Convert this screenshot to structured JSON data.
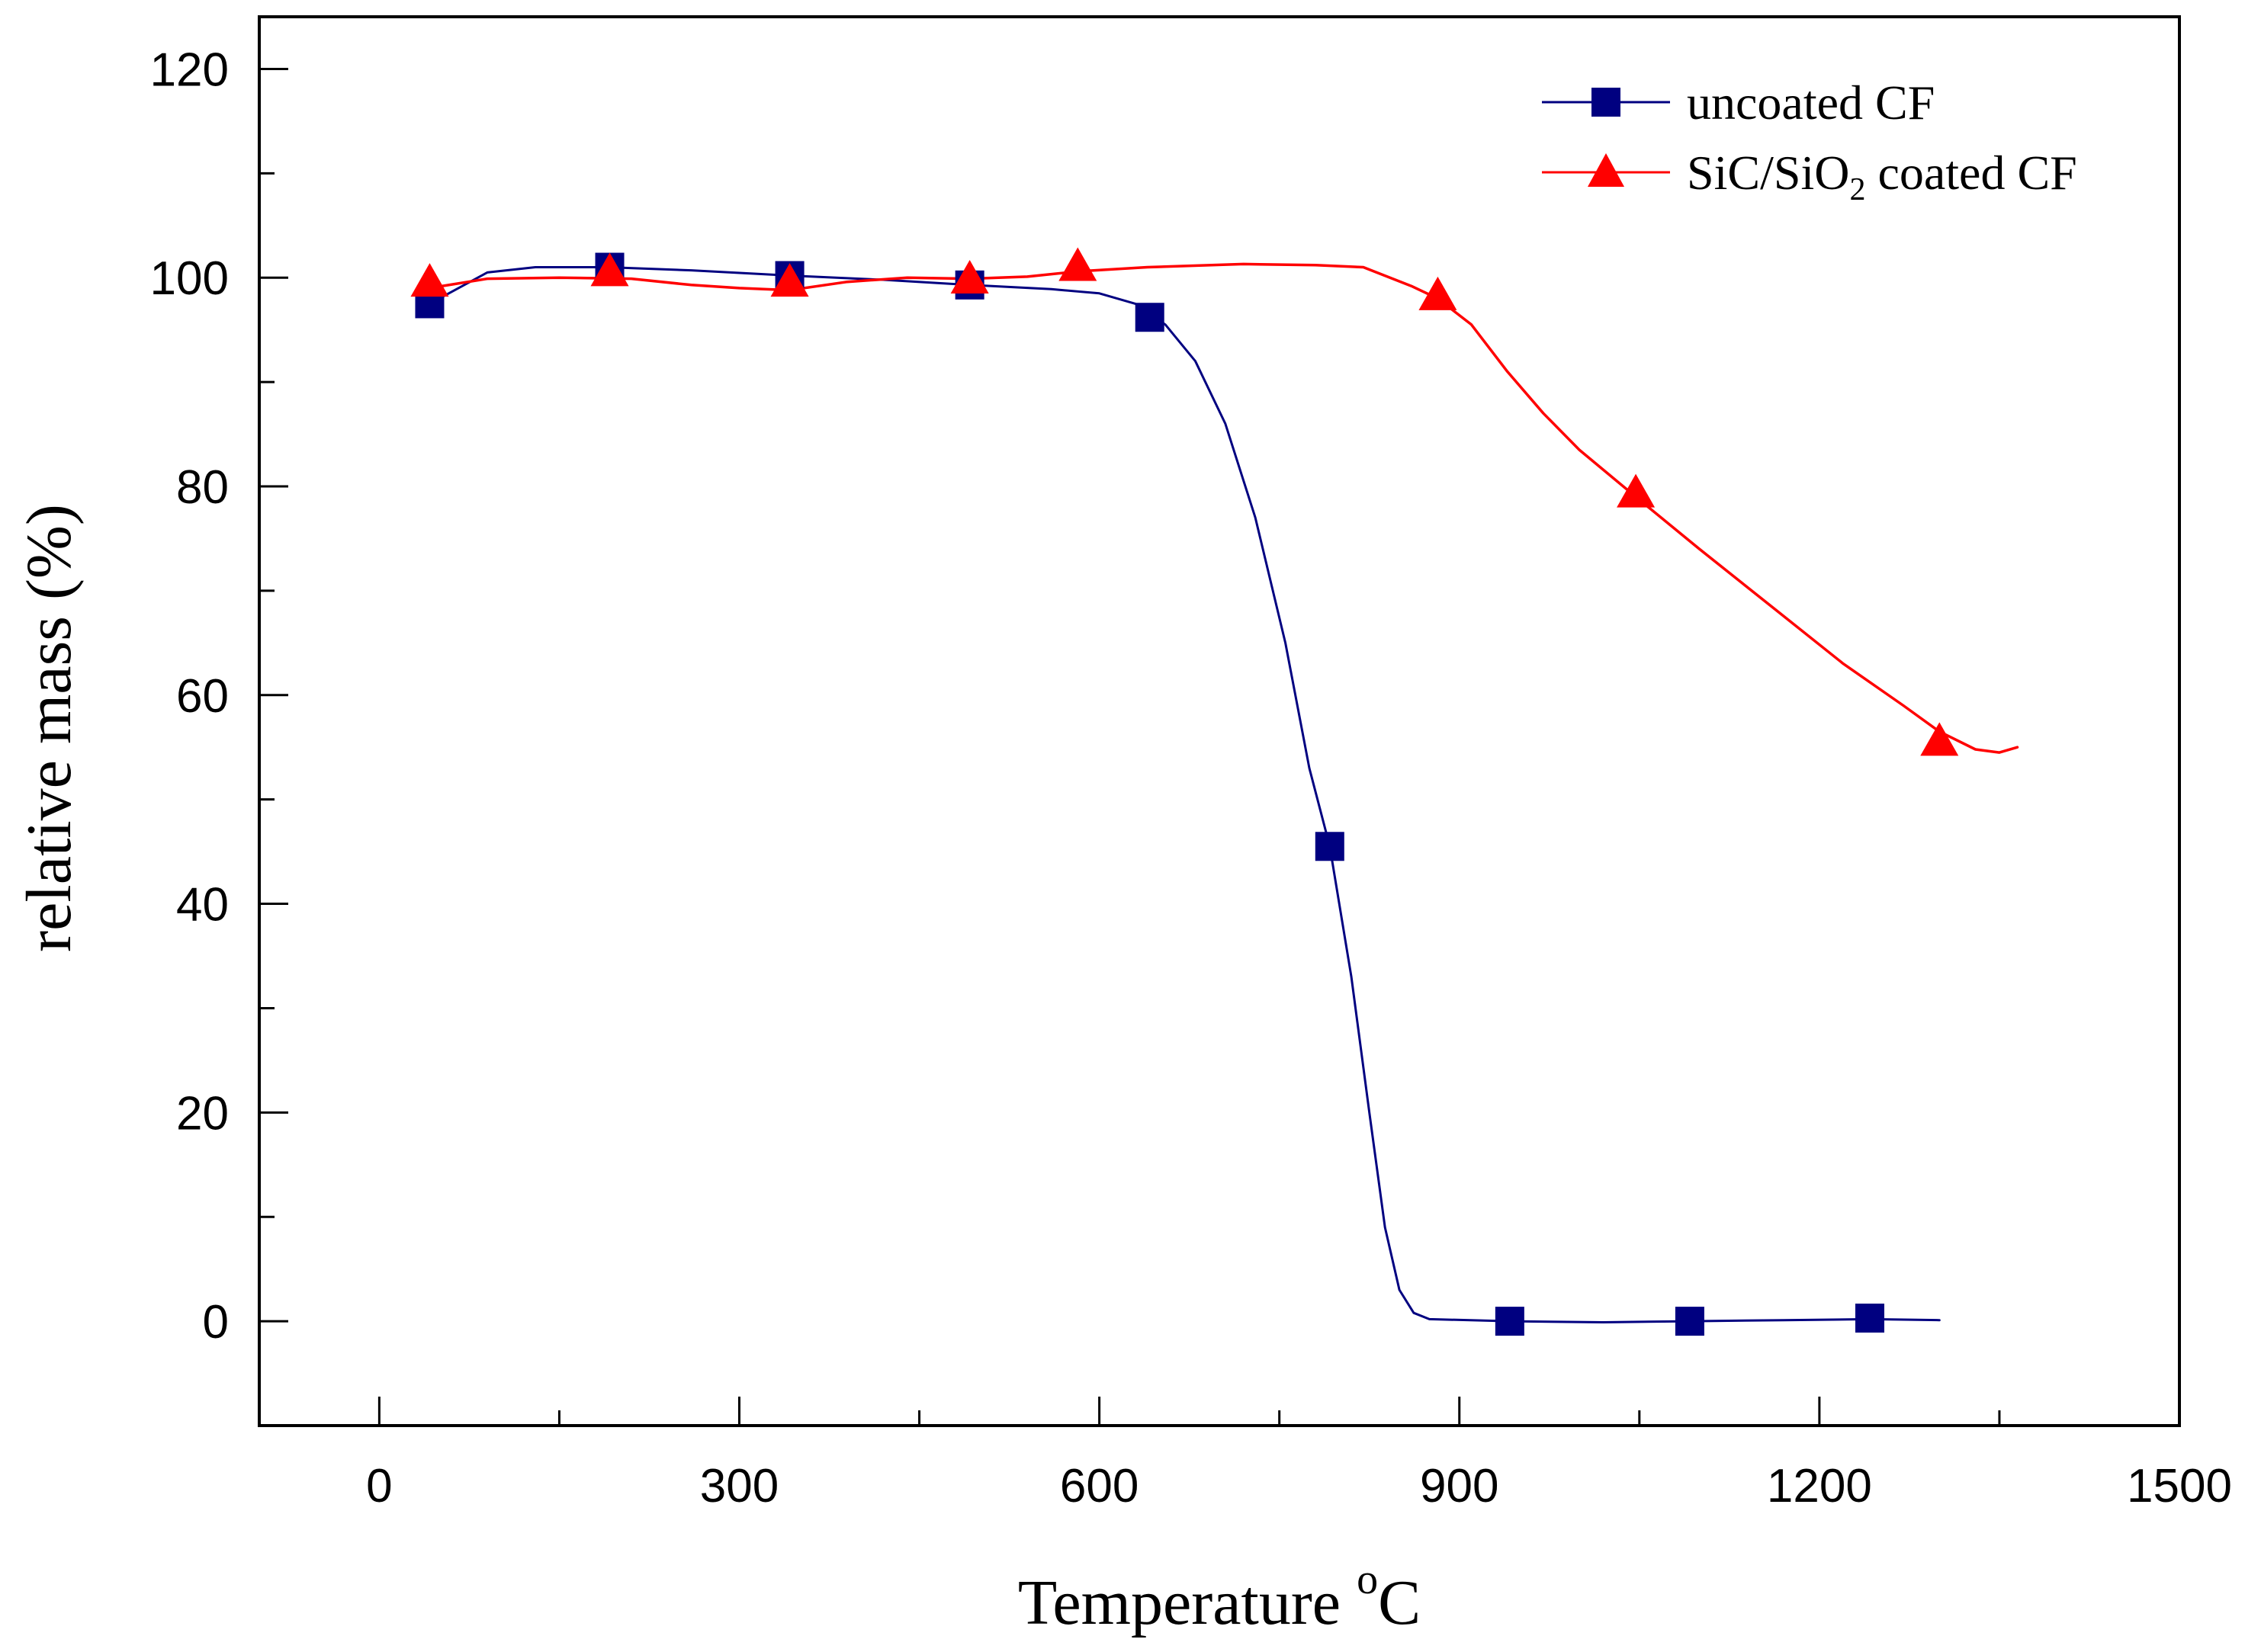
{
  "chart_data": {
    "type": "line",
    "xlabel": "Temperature",
    "xlabel_unit_sup": "o",
    "xlabel_unit": "C",
    "ylabel": "relative mass (%)",
    "xlim": [
      -100,
      1500
    ],
    "ylim": [
      -10,
      125
    ],
    "x_ticks": [
      0,
      300,
      600,
      900,
      1200,
      1500
    ],
    "y_ticks": [
      0,
      20,
      40,
      60,
      80,
      100,
      120
    ],
    "x_minor_step": 150,
    "y_minor_step": 10,
    "grid": false,
    "legend_position": "top-right",
    "series": [
      {
        "name": "uncoated CF",
        "color": "#000080",
        "marker": "square",
        "points": [
          {
            "x": 42,
            "y": 97.5
          },
          {
            "x": 192,
            "y": 101
          },
          {
            "x": 342,
            "y": 100.2
          },
          {
            "x": 492,
            "y": 99.3
          },
          {
            "x": 642,
            "y": 96.2
          },
          {
            "x": 792,
            "y": 45.5
          },
          {
            "x": 942,
            "y": 0
          },
          {
            "x": 1092,
            "y": 0
          },
          {
            "x": 1242,
            "y": 0.3
          }
        ],
        "curve": [
          [
            42,
            97.5
          ],
          [
            90,
            100.5
          ],
          [
            130,
            101
          ],
          [
            190,
            101
          ],
          [
            260,
            100.7
          ],
          [
            342,
            100.2
          ],
          [
            420,
            99.8
          ],
          [
            492,
            99.3
          ],
          [
            560,
            98.9
          ],
          [
            600,
            98.5
          ],
          [
            630,
            97.5
          ],
          [
            655,
            95.5
          ],
          [
            680,
            92
          ],
          [
            705,
            86
          ],
          [
            730,
            77
          ],
          [
            755,
            65
          ],
          [
            775,
            53
          ],
          [
            792,
            45.5
          ],
          [
            810,
            33
          ],
          [
            825,
            20
          ],
          [
            838,
            9
          ],
          [
            850,
            3
          ],
          [
            862,
            0.8
          ],
          [
            875,
            0.2
          ],
          [
            942,
            0
          ],
          [
            1020,
            -0.1
          ],
          [
            1092,
            0
          ],
          [
            1170,
            0.1
          ],
          [
            1242,
            0.2
          ],
          [
            1300,
            0.1
          ]
        ]
      },
      {
        "name": "SiC/SiO",
        "name_sub": "2",
        "name_suffix": " coated CF",
        "color": "#ff0000",
        "marker": "triangle",
        "points": [
          {
            "x": 42,
            "y": 99.5
          },
          {
            "x": 192,
            "y": 100.5
          },
          {
            "x": 342,
            "y": 99.5
          },
          {
            "x": 492,
            "y": 99.8
          },
          {
            "x": 582,
            "y": 101
          },
          {
            "x": 882,
            "y": 98.2
          },
          {
            "x": 1047,
            "y": 79.3
          },
          {
            "x": 1300,
            "y": 55.5
          }
        ],
        "curve": [
          [
            42,
            99
          ],
          [
            90,
            99.9
          ],
          [
            150,
            100
          ],
          [
            210,
            99.9
          ],
          [
            260,
            99.3
          ],
          [
            300,
            99
          ],
          [
            342,
            98.8
          ],
          [
            390,
            99.6
          ],
          [
            440,
            100
          ],
          [
            492,
            99.9
          ],
          [
            540,
            100.1
          ],
          [
            582,
            100.6
          ],
          [
            640,
            101
          ],
          [
            720,
            101.3
          ],
          [
            780,
            101.2
          ],
          [
            820,
            101
          ],
          [
            860,
            99.2
          ],
          [
            882,
            98
          ],
          [
            910,
            95.5
          ],
          [
            940,
            91
          ],
          [
            970,
            87
          ],
          [
            1000,
            83.5
          ],
          [
            1047,
            79
          ],
          [
            1100,
            74
          ],
          [
            1160,
            68.5
          ],
          [
            1220,
            63
          ],
          [
            1270,
            59
          ],
          [
            1300,
            56.5
          ],
          [
            1330,
            54.8
          ],
          [
            1350,
            54.5
          ],
          [
            1365,
            55
          ]
        ]
      }
    ]
  }
}
